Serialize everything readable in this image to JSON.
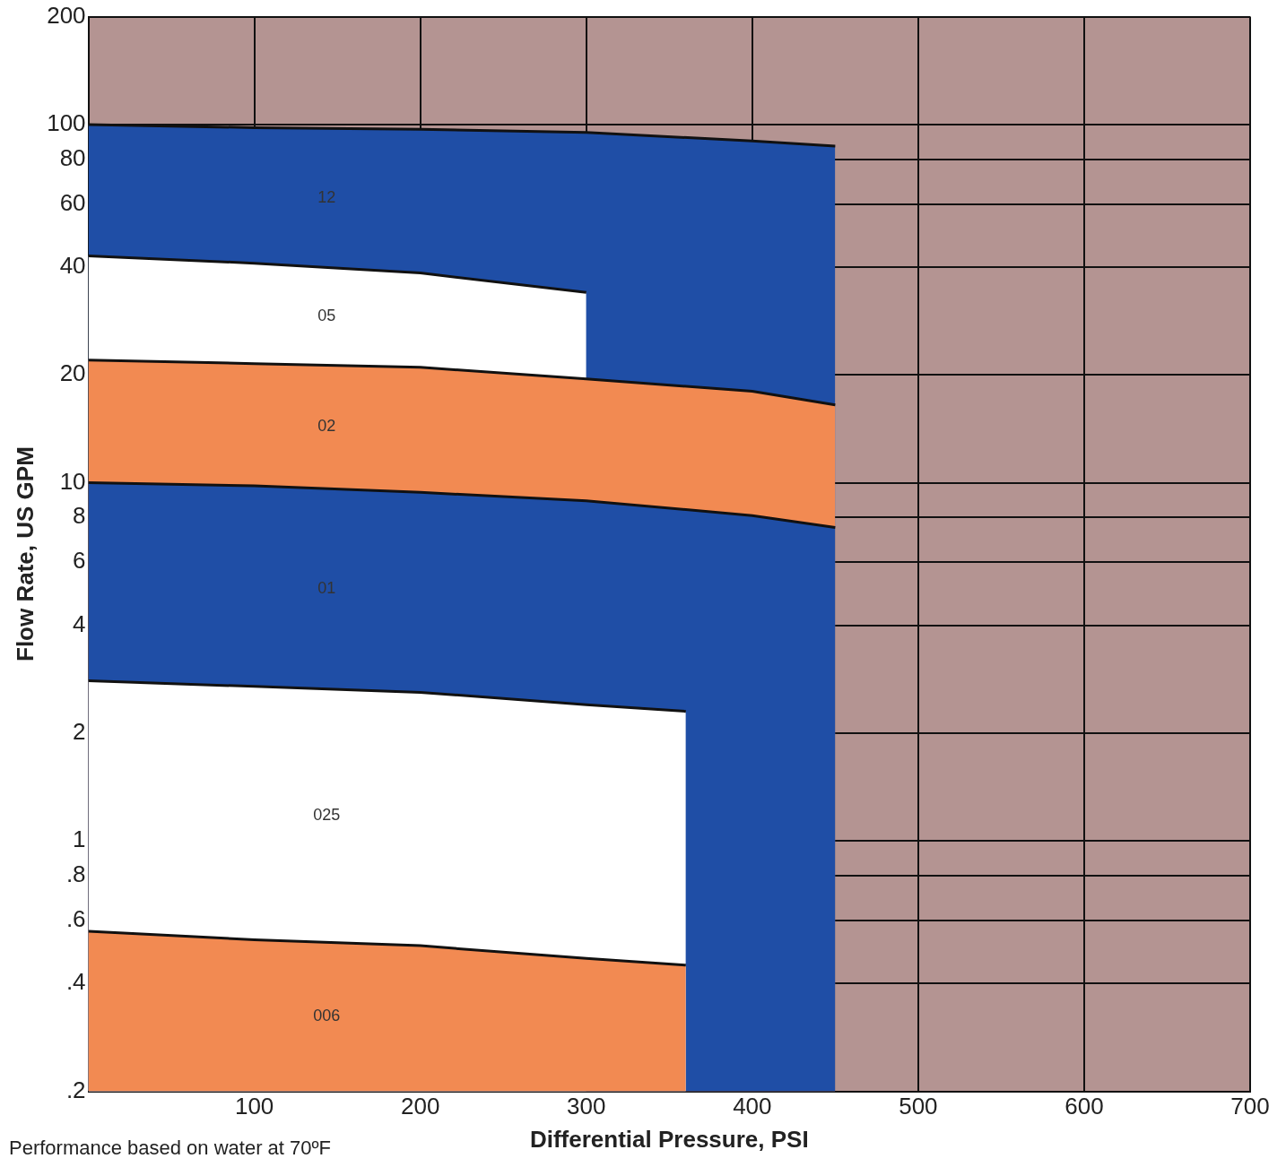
{
  "chart_data": {
    "type": "area",
    "xlabel": "Differential Pressure, PSI",
    "ylabel": "Flow Rate, US GPM",
    "log": "y",
    "grid": true,
    "legend": false,
    "xlim": [
      0,
      700
    ],
    "xticks": [
      {
        "value": 0,
        "label": null
      },
      100,
      200,
      300,
      400,
      500,
      600,
      700
    ],
    "ylim": [
      0.2,
      200
    ],
    "yticks": [
      {
        "value": 0.2,
        "label": ".2"
      },
      {
        "value": 0.4,
        "label": ".4"
      },
      {
        "value": 0.6,
        "label": ".6"
      },
      {
        "value": 0.8,
        "label": ".8"
      },
      1,
      2,
      4,
      6,
      8,
      10,
      20,
      40,
      60,
      80,
      100,
      200
    ],
    "annotations": [
      "Performance based on water at 70ºF"
    ],
    "series": [
      {
        "name": "006",
        "color": "#f28a52",
        "x": [
          0,
          100,
          200,
          300,
          360
        ],
        "values": [
          0.56,
          0.53,
          0.51,
          0.47,
          0.45
        ]
      },
      {
        "name": "025",
        "color": "#ffffff",
        "x": [
          0,
          100,
          200,
          300,
          360
        ],
        "values": [
          2.8,
          2.7,
          2.6,
          2.4,
          2.3
        ]
      },
      {
        "name": "01",
        "color": "#1f4ea6",
        "x": [
          0,
          100,
          200,
          300,
          400,
          450
        ],
        "values": [
          10,
          9.8,
          9.4,
          8.9,
          8.1,
          7.5
        ]
      },
      {
        "name": "02",
        "color": "#f28a52",
        "x": [
          0,
          100,
          200,
          300,
          400,
          450
        ],
        "values": [
          22,
          21.5,
          21,
          19.5,
          18,
          16.5
        ]
      },
      {
        "name": "05",
        "color": "#ffffff",
        "x": [
          0,
          100,
          200,
          300
        ],
        "values": [
          43,
          41,
          38.5,
          34
        ]
      },
      {
        "name": "12",
        "color": "#1f4ea6",
        "x": [
          0,
          100,
          200,
          300,
          400,
          450
        ],
        "values": [
          100,
          98,
          97,
          95,
          90,
          87
        ]
      }
    ]
  }
}
